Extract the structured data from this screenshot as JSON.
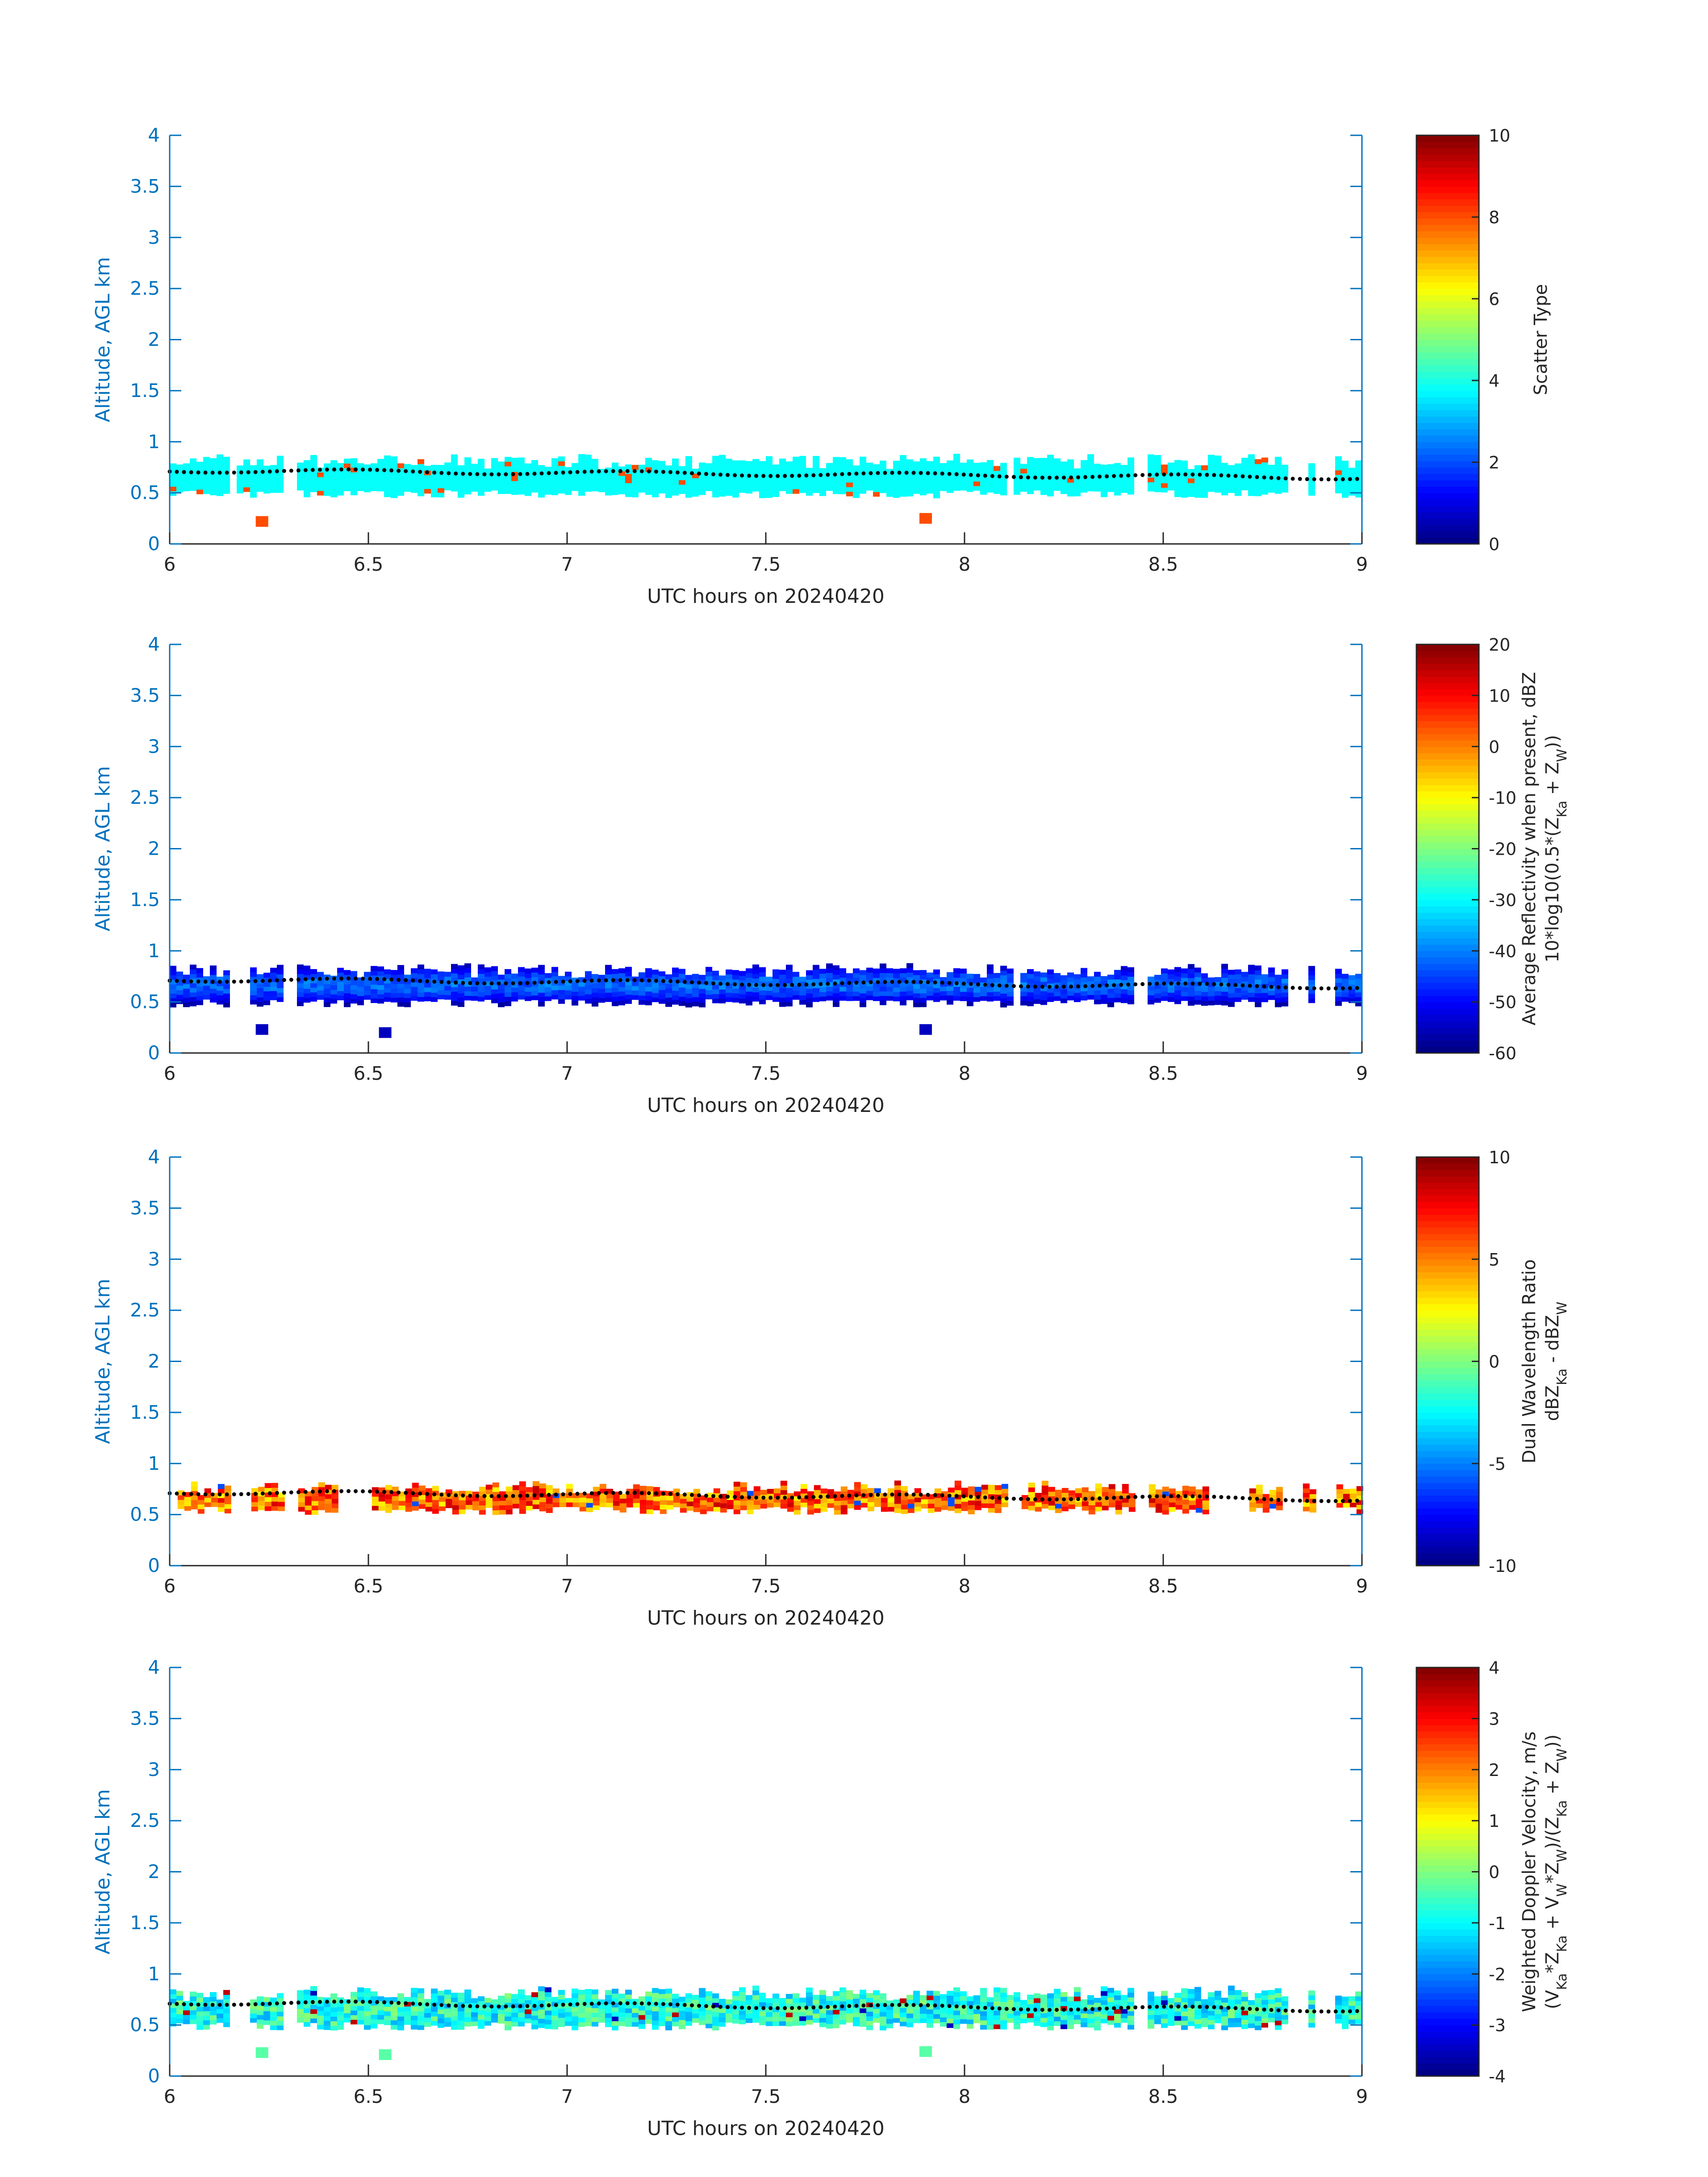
{
  "chart_data": [
    {
      "type": "heatmap",
      "xlabel": "UTC hours on 20240420",
      "ylabel": "Altitude, AGL km",
      "xlim": [
        6,
        9
      ],
      "ylim": [
        0,
        4
      ],
      "xticks": [
        "6",
        "6.5",
        "7",
        "7.5",
        "8",
        "8.5",
        "9"
      ],
      "yticks": [
        "0",
        "0.5",
        "1",
        "1.5",
        "2",
        "2.5",
        "3",
        "3.5",
        "4"
      ],
      "colorbar": {
        "label_lines": [
          "Scatter Type"
        ],
        "colormap": "jet",
        "clim": [
          0,
          10
        ],
        "ticks": [
          "0",
          "2",
          "4",
          "6",
          "8",
          "10"
        ]
      },
      "dominant_value": 3.8,
      "layer": {
        "base_km": 0.45,
        "top_km": 0.85,
        "x_start": 6.0,
        "x_end": 9.0,
        "gaps": [
          [
            6.14,
            6.16
          ],
          [
            6.28,
            6.32
          ],
          [
            8.1,
            8.12
          ],
          [
            8.42,
            8.46
          ],
          [
            8.8,
            8.85
          ],
          [
            8.88,
            8.92
          ]
        ]
      },
      "isolated_points": [
        {
          "x": 6.23,
          "y": 0.22,
          "value": 8.0
        },
        {
          "x": 7.9,
          "y": 0.25,
          "value": 8.0
        }
      ],
      "dotted_line": {
        "start_km": 0.72,
        "end_km": 0.65,
        "description": "black dotted line"
      }
    },
    {
      "type": "heatmap",
      "xlabel": "UTC hours on 20240420",
      "ylabel": "Altitude, AGL km",
      "xlim": [
        6,
        9
      ],
      "ylim": [
        0,
        4
      ],
      "xticks": [
        "6",
        "6.5",
        "7",
        "7.5",
        "8",
        "8.5",
        "9"
      ],
      "yticks": [
        "0",
        "0.5",
        "1",
        "1.5",
        "2",
        "2.5",
        "3",
        "3.5",
        "4"
      ],
      "colorbar": {
        "label_lines": [
          "Average Reflectivity when present, dBZ",
          "10*log10(0.5*(Z",
          "Ka",
          " + Z",
          "W",
          "))"
        ],
        "colormap": "jet",
        "clim": [
          -60,
          20
        ],
        "ticks": [
          "-60",
          "-50",
          "-40",
          "-30",
          "-20",
          "-10",
          "0",
          "10",
          "20"
        ]
      },
      "dominant_value": -52,
      "layer": {
        "base_km": 0.45,
        "top_km": 0.85,
        "x_start": 6.0,
        "x_end": 9.0,
        "gaps": [
          [
            6.14,
            6.2
          ],
          [
            6.28,
            6.32
          ],
          [
            8.12,
            8.14
          ],
          [
            8.42,
            8.46
          ],
          [
            8.8,
            8.85
          ],
          [
            8.88,
            8.92
          ]
        ]
      },
      "isolated_points": [
        {
          "x": 6.23,
          "y": 0.23,
          "value": -55
        },
        {
          "x": 6.54,
          "y": 0.2,
          "value": -55
        },
        {
          "x": 7.9,
          "y": 0.23,
          "value": -55
        }
      ],
      "dotted_line": {
        "start_km": 0.72,
        "end_km": 0.65,
        "description": "black dotted line"
      }
    },
    {
      "type": "heatmap",
      "xlabel": "UTC hours on 20240420",
      "ylabel": "Altitude, AGL km",
      "xlim": [
        6,
        9
      ],
      "ylim": [
        0,
        4
      ],
      "xticks": [
        "6",
        "6.5",
        "7",
        "7.5",
        "8",
        "8.5",
        "9"
      ],
      "yticks": [
        "0",
        "0.5",
        "1",
        "1.5",
        "2",
        "2.5",
        "3",
        "3.5",
        "4"
      ],
      "colorbar": {
        "label_lines": [
          "Dual Wavelength Ratio",
          "dBZ",
          "Ka",
          " - dBZ",
          "W"
        ],
        "colormap": "jet",
        "clim": [
          -10,
          10
        ],
        "ticks": [
          "-10",
          "-5",
          "0",
          "5",
          "10"
        ]
      },
      "dominant_value": 6,
      "layer": {
        "base_km": 0.5,
        "top_km": 0.8,
        "x_start": 6.02,
        "x_end": 9.0,
        "gaps": [
          [
            6.14,
            6.2
          ],
          [
            6.28,
            6.32
          ],
          [
            6.42,
            6.5
          ],
          [
            8.1,
            8.14
          ],
          [
            8.42,
            8.46
          ],
          [
            8.6,
            8.7
          ],
          [
            8.8,
            8.85
          ],
          [
            8.88,
            8.92
          ]
        ]
      },
      "isolated_points": [],
      "dotted_line": {
        "start_km": 0.72,
        "end_km": 0.65,
        "description": "black dotted line"
      }
    },
    {
      "type": "heatmap",
      "xlabel": "UTC hours on 20240420",
      "ylabel": "Altitude, AGL km",
      "xlim": [
        6,
        9
      ],
      "ylim": [
        0,
        4
      ],
      "xticks": [
        "6",
        "6.5",
        "7",
        "7.5",
        "8",
        "8.5",
        "9"
      ],
      "yticks": [
        "0",
        "0.5",
        "1",
        "1.5",
        "2",
        "2.5",
        "3",
        "3.5",
        "4"
      ],
      "colorbar": {
        "label_lines": [
          "Weighted Doppler Velocity, m/s",
          "(V",
          "Ka",
          "*Z",
          "Ka",
          " + V",
          "W",
          "*Z",
          "W",
          ")/(Z",
          "Ka",
          " + Z",
          "W",
          "))"
        ],
        "colormap": "jet",
        "clim": [
          -4,
          4
        ],
        "ticks": [
          "-4",
          "-3",
          "-2",
          "-1",
          "0",
          "1",
          "2",
          "3",
          "4"
        ]
      },
      "dominant_value": -0.7,
      "layer": {
        "base_km": 0.45,
        "top_km": 0.85,
        "x_start": 6.0,
        "x_end": 9.0,
        "gaps": [
          [
            6.14,
            6.2
          ],
          [
            6.28,
            6.32
          ],
          [
            8.42,
            8.46
          ],
          [
            8.8,
            8.85
          ],
          [
            8.88,
            8.92
          ]
        ]
      },
      "isolated_points": [
        {
          "x": 6.23,
          "y": 0.23,
          "value": -0.3
        },
        {
          "x": 6.54,
          "y": 0.21,
          "value": -0.3
        },
        {
          "x": 7.9,
          "y": 0.24,
          "value": -0.3
        }
      ],
      "dotted_line": {
        "start_km": 0.72,
        "end_km": 0.65,
        "description": "black dotted line"
      }
    }
  ]
}
